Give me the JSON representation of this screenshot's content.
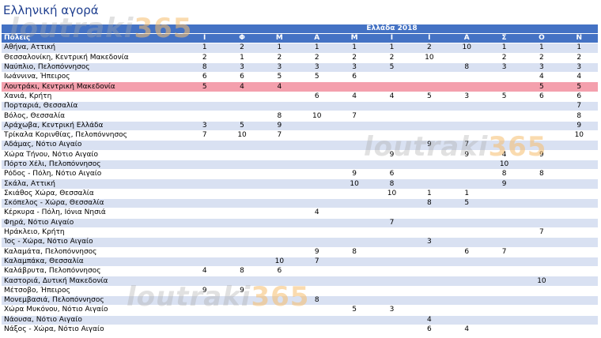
{
  "title": "Ελληνική αγορά",
  "watermark": {
    "brand": "loutraki",
    "num": "365"
  },
  "table": {
    "group_header": "Ελλάδα 2018",
    "col_header": "Πόλεις",
    "months": [
      "Ι",
      "Φ",
      "Μ",
      "Α",
      "Μ",
      "Ι",
      "Ι",
      "Α",
      "Σ",
      "Ο",
      "Ν"
    ],
    "rows": [
      {
        "name": "Αθήνα, Αττική",
        "v": [
          "1",
          "2",
          "1",
          "1",
          "1",
          "1",
          "2",
          "10",
          "1",
          "1",
          "1"
        ]
      },
      {
        "name": "Θεσσαλονίκη, Κεντρική Μακεδονία",
        "v": [
          "2",
          "1",
          "2",
          "2",
          "2",
          "2",
          "10",
          "",
          "2",
          "2",
          "2"
        ]
      },
      {
        "name": "Ναύπλιο, Πελοπόννησος",
        "v": [
          "8",
          "3",
          "3",
          "3",
          "3",
          "5",
          "",
          "8",
          "3",
          "3",
          "3"
        ]
      },
      {
        "name": "Ιωάννινα, Ήπειρος",
        "v": [
          "6",
          "6",
          "5",
          "5",
          "6",
          "",
          "",
          "",
          "",
          "4",
          "4"
        ]
      },
      {
        "name": "Λουτράκι, Κεντρική Μακεδονία",
        "v": [
          "5",
          "4",
          "4",
          "",
          "",
          "",
          "",
          "",
          "",
          "5",
          "5"
        ],
        "highlight": true
      },
      {
        "name": "Χανιά, Κρήτη",
        "v": [
          "",
          "",
          "",
          "6",
          "4",
          "4",
          "5",
          "3",
          "5",
          "6",
          "6"
        ]
      },
      {
        "name": "Πορταριά, Θεσσαλία",
        "v": [
          "",
          "",
          "",
          "",
          "",
          "",
          "",
          "",
          "",
          "",
          "7"
        ]
      },
      {
        "name": "Βόλος, Θεσσαλία",
        "v": [
          "",
          "",
          "8",
          "10",
          "7",
          "",
          "",
          "",
          "",
          "",
          "8"
        ]
      },
      {
        "name": "Αράχωβα, Κεντρική Ελλάδα",
        "v": [
          "3",
          "5",
          "9",
          "",
          "",
          "",
          "",
          "",
          "",
          "",
          "9"
        ]
      },
      {
        "name": "Τρίκαλα Κορινθίας, Πελοπόννησος",
        "v": [
          "7",
          "10",
          "7",
          "",
          "",
          "",
          "",
          "",
          "",
          "",
          "10"
        ]
      },
      {
        "name": "Αδάμας, Νότιο Αιγαίο",
        "v": [
          "",
          "",
          "",
          "",
          "",
          "",
          "9",
          "7",
          "",
          "",
          ""
        ]
      },
      {
        "name": "Χώρα Τήνου, Νότιο Αιγαίο",
        "v": [
          "",
          "",
          "",
          "",
          "",
          "9",
          "",
          "9",
          "4",
          "9",
          ""
        ]
      },
      {
        "name": "Πόρτο Χέλι, Πελοπόννησος",
        "v": [
          "",
          "",
          "",
          "",
          "",
          "",
          "",
          "",
          "10",
          "",
          ""
        ]
      },
      {
        "name": "Ρόδος - Πόλη, Νότιο Αιγαίο",
        "v": [
          "",
          "",
          "",
          "",
          "9",
          "6",
          "",
          "",
          "8",
          "8",
          ""
        ]
      },
      {
        "name": "Σκάλα, Αττική",
        "v": [
          "",
          "",
          "",
          "",
          "10",
          "8",
          "",
          "",
          "9",
          "",
          ""
        ]
      },
      {
        "name": "Σκιάθος Χώρα, Θεσσαλία",
        "v": [
          "",
          "",
          "",
          "",
          "",
          "10",
          "1",
          "1",
          "",
          "",
          ""
        ]
      },
      {
        "name": "Σκόπελος - Χώρα, Θεσσαλία",
        "v": [
          "",
          "",
          "",
          "",
          "",
          "",
          "8",
          "5",
          "",
          "",
          ""
        ]
      },
      {
        "name": "Κέρκυρα - Πόλη, Ιόνια Νησιά",
        "v": [
          "",
          "",
          "",
          "4",
          "",
          "",
          "",
          "",
          "",
          "",
          ""
        ]
      },
      {
        "name": "Φηρά, Νότιο Αιγαίο",
        "v": [
          "",
          "",
          "",
          "",
          "",
          "7",
          "",
          "",
          "",
          "",
          ""
        ]
      },
      {
        "name": "Ηράκλειο, Κρήτη",
        "v": [
          "",
          "",
          "",
          "",
          "",
          "",
          "",
          "",
          "",
          "7",
          ""
        ]
      },
      {
        "name": "Ίος - Χώρα, Νότιο Αιγαίο",
        "v": [
          "",
          "",
          "",
          "",
          "",
          "",
          "3",
          "",
          "",
          "",
          ""
        ]
      },
      {
        "name": "Καλαμάτα, Πελοπόννησος",
        "v": [
          "",
          "",
          "",
          "9",
          "8",
          "",
          "",
          "6",
          "7",
          "",
          ""
        ]
      },
      {
        "name": "Καλαμπάκα, Θεσσαλία",
        "v": [
          "",
          "",
          "10",
          "7",
          "",
          "",
          "",
          "",
          "",
          "",
          ""
        ]
      },
      {
        "name": "Καλάβρυτα, Πελοπόννησος",
        "v": [
          "4",
          "8",
          "6",
          "",
          "",
          "",
          "",
          "",
          "",
          "",
          ""
        ]
      },
      {
        "name": "Καστοριά, Δυτική Μακεδονία",
        "v": [
          "",
          "",
          "",
          "",
          "",
          "",
          "",
          "",
          "",
          "10",
          ""
        ]
      },
      {
        "name": "Μέτσοβο, Ήπειρος",
        "v": [
          "9",
          "9",
          "",
          "",
          "",
          "",
          "",
          "",
          "",
          "",
          ""
        ]
      },
      {
        "name": "Μονεμβασιά, Πελοπόννησος",
        "v": [
          "",
          "",
          "",
          "8",
          "",
          "",
          "",
          "",
          "",
          "",
          ""
        ]
      },
      {
        "name": "Χώρα Μυκόνου, Νότιο Αιγαίο",
        "v": [
          "",
          "",
          "",
          "",
          "5",
          "3",
          "",
          "",
          "",
          "",
          ""
        ]
      },
      {
        "name": "Νάουσα, Νότιο Αιγαίο",
        "v": [
          "",
          "",
          "",
          "",
          "",
          "",
          "4",
          "",
          "",
          "",
          ""
        ]
      },
      {
        "name": "Νάξος - Χώρα, Νότιο Αιγαίο",
        "v": [
          "",
          "",
          "",
          "",
          "",
          "",
          "6",
          "4",
          "",
          "",
          ""
        ]
      }
    ]
  }
}
